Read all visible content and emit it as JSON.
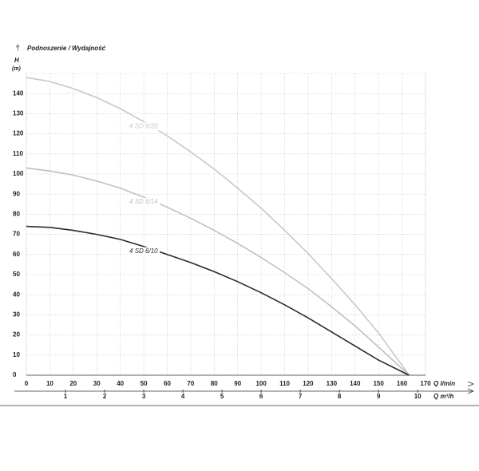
{
  "chart_data": {
    "type": "line",
    "title": "Podnoszenie / Wydajność",
    "y_label": "H",
    "y_unit": "(m)",
    "x_label": "Q l/min",
    "x2_label": "Q m³/h",
    "x": [
      0,
      10,
      20,
      30,
      40,
      50,
      60,
      70,
      80,
      90,
      100,
      110,
      120,
      130,
      140,
      150,
      163
    ],
    "series": [
      {
        "name": "4 SD 6/20",
        "color": "#c8c8c8",
        "values": [
          148,
          146,
          142.5,
          138,
          132.5,
          126,
          119,
          111,
          102.5,
          93,
          83,
          72,
          60.5,
          48,
          35,
          21,
          0
        ]
      },
      {
        "name": "4 SD 6/14",
        "color": "#c0c0c0",
        "values": [
          103,
          101.5,
          99.5,
          96.5,
          93,
          88.5,
          83.5,
          78,
          72,
          65.5,
          58.5,
          51,
          43,
          34,
          24.5,
          14,
          0
        ]
      },
      {
        "name": "4 SD 6/10",
        "color": "#2a2a2a",
        "values": [
          74,
          73.5,
          72,
          70,
          67.5,
          64,
          60,
          56,
          51.5,
          46.5,
          41,
          35,
          28.5,
          21.5,
          14.5,
          7.5,
          0
        ]
      }
    ],
    "xlim": [
      0,
      170
    ],
    "xticks": [
      0,
      10,
      20,
      30,
      40,
      50,
      60,
      70,
      80,
      90,
      100,
      110,
      120,
      130,
      140,
      150,
      160,
      170
    ],
    "ylim": [
      0,
      150
    ],
    "yticks": [
      0,
      10,
      20,
      30,
      40,
      50,
      60,
      70,
      80,
      90,
      100,
      110,
      120,
      130,
      140
    ],
    "x2lim": [
      0,
      10.2
    ],
    "x2ticks": [
      1,
      2,
      3,
      4,
      5,
      6,
      7,
      8,
      9,
      10
    ],
    "grid": true
  }
}
